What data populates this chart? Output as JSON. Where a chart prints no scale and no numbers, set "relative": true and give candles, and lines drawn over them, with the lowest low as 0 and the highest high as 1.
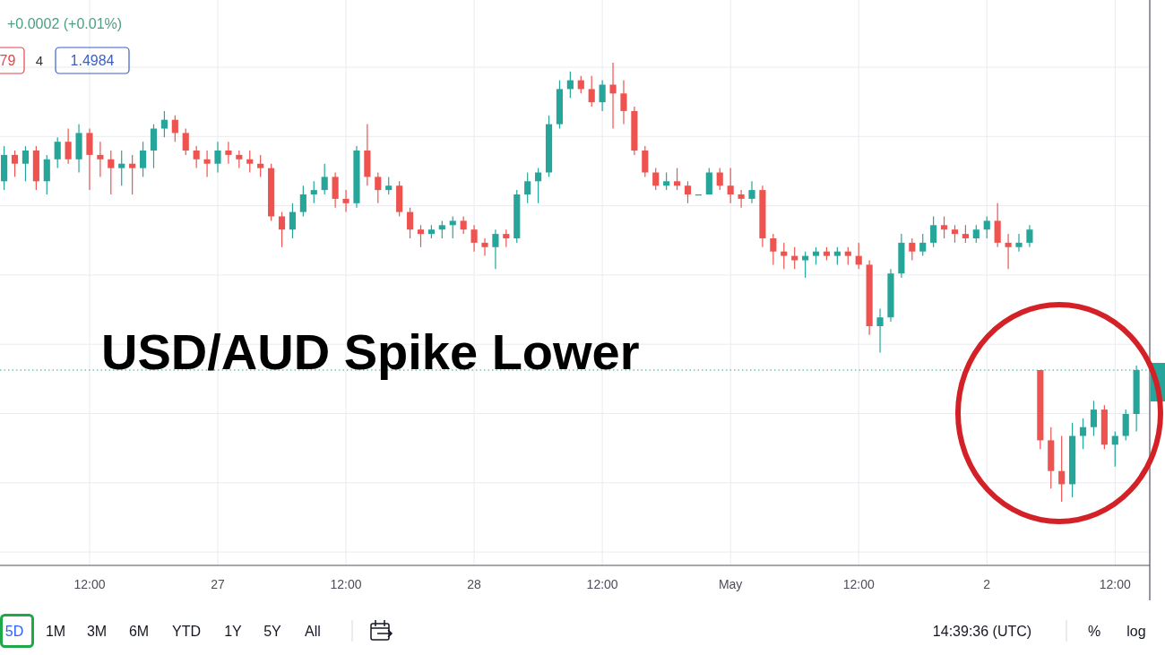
{
  "chart_data": {
    "type": "candlestick",
    "title": "USD/AUD Spike Lower",
    "relative": true,
    "grid": true,
    "categories": [
      null,
      null,
      null,
      null,
      null,
      null,
      null,
      null,
      "12:00",
      null,
      null,
      null,
      null,
      null,
      null,
      null,
      null,
      null,
      null,
      null,
      "27",
      null,
      null,
      null,
      null,
      null,
      null,
      null,
      null,
      null,
      null,
      null,
      "12:00",
      null,
      null,
      null,
      null,
      null,
      null,
      null,
      null,
      null,
      null,
      null,
      "28",
      null,
      null,
      null,
      null,
      null,
      null,
      null,
      null,
      null,
      null,
      null,
      "12:00",
      null,
      null,
      null,
      null,
      null,
      null,
      null,
      null,
      null,
      null,
      null,
      "May",
      null,
      null,
      null,
      null,
      null,
      null,
      null,
      null,
      null,
      null,
      null,
      "12:00",
      null,
      null,
      null,
      null,
      null,
      null,
      null,
      null,
      null,
      null,
      null,
      "2",
      null,
      null,
      null,
      null,
      null,
      null,
      null,
      null,
      null,
      null,
      null,
      "12:00",
      null,
      null
    ],
    "ohlc": [
      [
        0.73,
        0.81,
        0.71,
        0.79
      ],
      [
        0.79,
        0.8,
        0.74,
        0.77
      ],
      [
        0.77,
        0.81,
        0.73,
        0.8
      ],
      [
        0.8,
        0.81,
        0.71,
        0.73
      ],
      [
        0.73,
        0.79,
        0.7,
        0.78
      ],
      [
        0.78,
        0.83,
        0.76,
        0.82
      ],
      [
        0.82,
        0.85,
        0.77,
        0.78
      ],
      [
        0.78,
        0.86,
        0.75,
        0.84
      ],
      [
        0.84,
        0.85,
        0.71,
        0.79
      ],
      [
        0.79,
        0.82,
        0.74,
        0.78
      ],
      [
        0.78,
        0.8,
        0.7,
        0.76
      ],
      [
        0.76,
        0.8,
        0.72,
        0.77
      ],
      [
        0.77,
        0.79,
        0.7,
        0.76
      ],
      [
        0.76,
        0.82,
        0.74,
        0.8
      ],
      [
        0.8,
        0.86,
        0.76,
        0.85
      ],
      [
        0.85,
        0.89,
        0.83,
        0.87
      ],
      [
        0.87,
        0.88,
        0.82,
        0.84
      ],
      [
        0.84,
        0.85,
        0.79,
        0.8
      ],
      [
        0.8,
        0.81,
        0.76,
        0.78
      ],
      [
        0.78,
        0.8,
        0.74,
        0.77
      ],
      [
        0.77,
        0.82,
        0.75,
        0.8
      ],
      [
        0.8,
        0.82,
        0.77,
        0.79
      ],
      [
        0.79,
        0.8,
        0.76,
        0.78
      ],
      [
        0.78,
        0.8,
        0.75,
        0.77
      ],
      [
        0.77,
        0.79,
        0.74,
        0.76
      ],
      [
        0.76,
        0.77,
        0.64,
        0.65
      ],
      [
        0.65,
        0.66,
        0.58,
        0.62
      ],
      [
        0.62,
        0.68,
        0.6,
        0.66
      ],
      [
        0.66,
        0.72,
        0.65,
        0.7
      ],
      [
        0.7,
        0.73,
        0.68,
        0.71
      ],
      [
        0.71,
        0.77,
        0.7,
        0.74
      ],
      [
        0.74,
        0.75,
        0.67,
        0.69
      ],
      [
        0.69,
        0.71,
        0.66,
        0.68
      ],
      [
        0.68,
        0.81,
        0.67,
        0.8
      ],
      [
        0.8,
        0.86,
        0.72,
        0.74
      ],
      [
        0.74,
        0.75,
        0.68,
        0.71
      ],
      [
        0.71,
        0.74,
        0.7,
        0.72
      ],
      [
        0.72,
        0.73,
        0.65,
        0.66
      ],
      [
        0.66,
        0.67,
        0.6,
        0.62
      ],
      [
        0.62,
        0.63,
        0.58,
        0.61
      ],
      [
        0.61,
        0.63,
        0.6,
        0.62
      ],
      [
        0.62,
        0.64,
        0.6,
        0.63
      ],
      [
        0.63,
        0.65,
        0.6,
        0.64
      ],
      [
        0.64,
        0.65,
        0.61,
        0.62
      ],
      [
        0.62,
        0.63,
        0.57,
        0.59
      ],
      [
        0.59,
        0.6,
        0.56,
        0.58
      ],
      [
        0.58,
        0.62,
        0.53,
        0.61
      ],
      [
        0.61,
        0.62,
        0.58,
        0.6
      ],
      [
        0.6,
        0.71,
        0.59,
        0.7
      ],
      [
        0.7,
        0.75,
        0.68,
        0.73
      ],
      [
        0.73,
        0.76,
        0.68,
        0.75
      ],
      [
        0.75,
        0.88,
        0.74,
        0.86
      ],
      [
        0.86,
        0.96,
        0.85,
        0.94
      ],
      [
        0.94,
        0.98,
        0.92,
        0.96
      ],
      [
        0.96,
        0.97,
        0.93,
        0.94
      ],
      [
        0.94,
        0.97,
        0.9,
        0.91
      ],
      [
        0.91,
        0.96,
        0.89,
        0.95
      ],
      [
        0.95,
        1.0,
        0.85,
        0.93
      ],
      [
        0.93,
        0.96,
        0.86,
        0.89
      ],
      [
        0.89,
        0.9,
        0.79,
        0.8
      ],
      [
        0.8,
        0.81,
        0.74,
        0.75
      ],
      [
        0.75,
        0.76,
        0.71,
        0.72
      ],
      [
        0.72,
        0.75,
        0.71,
        0.73
      ],
      [
        0.73,
        0.76,
        0.71,
        0.72
      ],
      [
        0.72,
        0.73,
        0.68,
        0.7
      ],
      [
        0.7,
        0.7,
        0.7,
        0.7
      ],
      [
        0.7,
        0.76,
        0.7,
        0.75
      ],
      [
        0.75,
        0.76,
        0.71,
        0.72
      ],
      [
        0.72,
        0.76,
        0.68,
        0.7
      ],
      [
        0.7,
        0.71,
        0.67,
        0.69
      ],
      [
        0.69,
        0.73,
        0.68,
        0.71
      ],
      [
        0.71,
        0.72,
        0.58,
        0.6
      ],
      [
        0.6,
        0.61,
        0.54,
        0.57
      ],
      [
        0.57,
        0.59,
        0.53,
        0.56
      ],
      [
        0.56,
        0.58,
        0.53,
        0.55
      ],
      [
        0.55,
        0.57,
        0.51,
        0.56
      ],
      [
        0.56,
        0.58,
        0.54,
        0.57
      ],
      [
        0.57,
        0.58,
        0.55,
        0.56
      ],
      [
        0.56,
        0.58,
        0.54,
        0.57
      ],
      [
        0.57,
        0.58,
        0.54,
        0.56
      ],
      [
        0.56,
        0.59,
        0.53,
        0.54
      ],
      [
        0.54,
        0.55,
        0.38,
        0.4
      ],
      [
        0.4,
        0.44,
        0.34,
        0.42
      ],
      [
        0.42,
        0.53,
        0.41,
        0.52
      ],
      [
        0.52,
        0.61,
        0.51,
        0.59
      ],
      [
        0.59,
        0.6,
        0.55,
        0.57
      ],
      [
        0.57,
        0.61,
        0.56,
        0.59
      ],
      [
        0.59,
        0.65,
        0.58,
        0.63
      ],
      [
        0.63,
        0.65,
        0.6,
        0.62
      ],
      [
        0.62,
        0.63,
        0.59,
        0.61
      ],
      [
        0.61,
        0.63,
        0.59,
        0.6
      ],
      [
        0.6,
        0.63,
        0.59,
        0.62
      ],
      [
        0.62,
        0.65,
        0.6,
        0.64
      ],
      [
        0.64,
        0.68,
        0.58,
        0.59
      ],
      [
        0.59,
        0.61,
        0.53,
        0.58
      ],
      [
        0.58,
        0.61,
        0.57,
        0.59
      ],
      [
        0.59,
        0.63,
        0.58,
        0.62
      ],
      [
        0.3,
        0.3,
        0.12,
        0.14
      ],
      [
        0.14,
        0.17,
        0.03,
        0.07
      ],
      [
        0.07,
        0.15,
        0,
        0.04
      ],
      [
        0.04,
        0.18,
        0.01,
        0.15
      ],
      [
        0.15,
        0.19,
        0.12,
        0.17
      ],
      [
        0.17,
        0.23,
        0.15,
        0.21
      ],
      [
        0.21,
        0.22,
        0.12,
        0.13
      ],
      [
        0.13,
        0.16,
        0.08,
        0.15
      ],
      [
        0.15,
        0.21,
        0.14,
        0.2
      ],
      [
        0.2,
        0.31,
        0.16,
        0.3
      ]
    ],
    "colors": [
      "#26a69a",
      "#ef5350",
      "#26a69a",
      "#ef5350",
      "#26a69a",
      "#26a69a",
      "#ef5350",
      "#26a69a",
      "#ef5350",
      "#ef5350",
      "#ef5350",
      "#26a69a",
      "#ef5350",
      "#26a69a",
      "#26a69a",
      "#26a69a",
      "#ef5350",
      "#ef5350",
      "#ef5350",
      "#ef5350",
      "#26a69a",
      "#ef5350",
      "#ef5350",
      "#ef5350",
      "#ef5350",
      "#ef5350",
      "#ef5350",
      "#26a69a",
      "#26a69a",
      "#26a69a",
      "#26a69a",
      "#ef5350",
      "#ef5350",
      "#26a69a",
      "#ef5350",
      "#ef5350",
      "#26a69a",
      "#ef5350",
      "#ef5350",
      "#ef5350",
      "#26a69a",
      "#26a69a",
      "#26a69a",
      "#ef5350",
      "#ef5350",
      "#ef5350",
      "#26a69a",
      "#ef5350",
      "#26a69a",
      "#26a69a",
      "#26a69a",
      "#26a69a",
      "#26a69a",
      "#26a69a",
      "#ef5350",
      "#ef5350",
      "#26a69a",
      "#ef5350",
      "#ef5350",
      "#ef5350",
      "#ef5350",
      "#ef5350",
      "#26a69a",
      "#ef5350",
      "#ef5350",
      "#26a69a",
      "#26a69a",
      "#ef5350",
      "#ef5350",
      "#ef5350",
      "#26a69a",
      "#ef5350",
      "#ef5350",
      "#ef5350",
      "#ef5350",
      "#26a69a",
      "#26a69a",
      "#ef5350",
      "#26a69a",
      "#ef5350",
      "#ef5350",
      "#ef5350",
      "#26a69a",
      "#26a69a",
      "#26a69a",
      "#ef5350",
      "#26a69a",
      "#26a69a",
      "#ef5350",
      "#ef5350",
      "#ef5350",
      "#26a69a",
      "#26a69a",
      "#ef5350",
      "#ef5350",
      "#26a69a",
      "#26a69a",
      "#ef5350",
      "#ef5350",
      "#ef5350",
      "#26a69a",
      "#26a69a",
      "#26a69a",
      "#ef5350",
      "#26a69a",
      "#26a69a",
      "#26a69a"
    ],
    "ref_lines": [
      {
        "axis": "y",
        "value": 0.3,
        "color": "#26a69a",
        "line_style": "dotted"
      }
    ],
    "annotations": [
      "+0.0002 (+0.01%)",
      "79",
      "4",
      "1.4984",
      "5D",
      "1M",
      "3M",
      "6M",
      "YTD",
      "1Y",
      "5Y",
      "All",
      "14:39:36 (UTC)",
      "%",
      "log"
    ]
  }
}
